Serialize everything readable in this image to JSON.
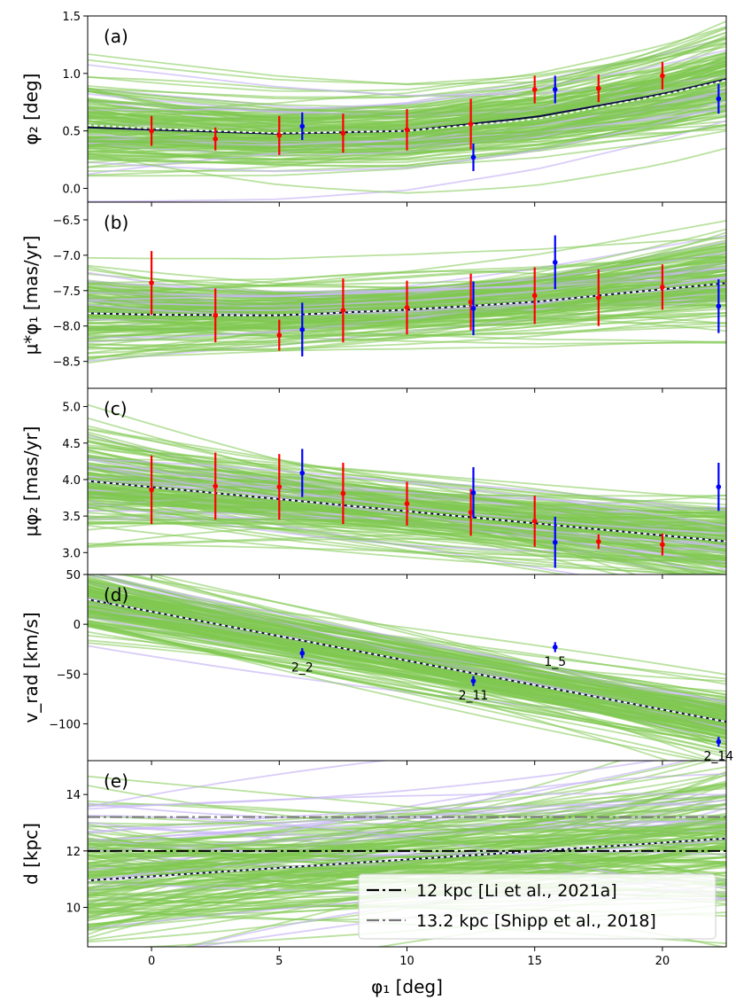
{
  "chart_data": [
    {
      "type": "line",
      "panel_label": "(a)",
      "ylabel": "φ₂ [deg]",
      "ylim": [
        -0.12,
        1.5
      ],
      "yticks": [
        0.0,
        0.5,
        1.0,
        1.5
      ],
      "ytick_labels": [
        "0.0",
        "0.5",
        "1.0",
        "1.5"
      ],
      "fit_line": {
        "x": [
          -2.5,
          0,
          5,
          10,
          15,
          20,
          22.3
        ],
        "y": [
          0.53,
          0.51,
          0.475,
          0.5,
          0.62,
          0.82,
          0.94
        ]
      },
      "alt_line": {
        "x": [
          -2.5,
          0,
          5,
          10,
          15,
          20,
          22.3
        ],
        "y": [
          0.55,
          0.52,
          0.48,
          0.5,
          0.6,
          0.81,
          0.93
        ]
      },
      "spread": {
        "base": 0.35,
        "slope": 0.012
      },
      "series": [
        {
          "name": "red",
          "color": "#ff0000",
          "x": [
            0,
            2.5,
            5,
            7.5,
            10,
            12.5,
            15,
            17.5,
            20
          ],
          "y": [
            0.5,
            0.43,
            0.46,
            0.48,
            0.51,
            0.56,
            0.86,
            0.87,
            0.98
          ],
          "err": [
            0.13,
            0.1,
            0.17,
            0.17,
            0.18,
            0.22,
            0.12,
            0.12,
            0.12
          ]
        },
        {
          "name": "blue",
          "color": "#0000ff",
          "x": [
            5.9,
            12.6,
            15.8,
            22.2
          ],
          "y": [
            0.54,
            0.27,
            0.86,
            0.78
          ],
          "err": [
            0.12,
            0.12,
            0.12,
            0.13
          ]
        }
      ],
      "annotations": []
    },
    {
      "type": "line",
      "panel_label": "(b)",
      "ylabel": "μ*φ₁ [mas/yr]",
      "ylim": [
        -8.88,
        -6.25
      ],
      "yticks": [
        -6.5,
        -7.0,
        -7.5,
        -8.0,
        -8.5
      ],
      "ytick_labels": [
        "−6.5",
        "−7.0",
        "−7.5",
        "−8.0",
        "−8.5"
      ],
      "fit_line": {
        "x": [
          -2.5,
          0,
          5,
          10,
          15,
          20,
          22.3
        ],
        "y": [
          -7.82,
          -7.84,
          -7.85,
          -7.77,
          -7.66,
          -7.48,
          -7.4
        ]
      },
      "alt_line": {
        "x": [
          -2.5,
          0,
          5,
          10,
          15,
          20,
          22.3
        ],
        "y": [
          -7.82,
          -7.84,
          -7.85,
          -7.77,
          -7.66,
          -7.48,
          -7.4
        ]
      },
      "spread": {
        "base": 0.55,
        "slope": 0.012
      },
      "series": [
        {
          "name": "red",
          "color": "#ff0000",
          "x": [
            0,
            2.5,
            5,
            7.5,
            10,
            12.5,
            15,
            17.5,
            20
          ],
          "y": [
            -7.39,
            -7.85,
            -8.13,
            -7.78,
            -7.74,
            -7.66,
            -7.57,
            -7.6,
            -7.45
          ],
          "err": [
            0.45,
            0.38,
            0.22,
            0.45,
            0.38,
            0.4,
            0.4,
            0.4,
            0.32
          ]
        },
        {
          "name": "blue",
          "color": "#0000ff",
          "x": [
            5.9,
            12.6,
            15.8,
            22.2
          ],
          "y": [
            -8.05,
            -7.75,
            -7.1,
            -7.72
          ],
          "err": [
            0.38,
            0.38,
            0.38,
            0.38
          ]
        }
      ],
      "annotations": []
    },
    {
      "type": "line",
      "panel_label": "(c)",
      "ylabel": "μφ₂ [mas/yr]",
      "ylim": [
        2.7,
        5.25
      ],
      "yticks": [
        3.0,
        3.5,
        4.0,
        4.5,
        5.0
      ],
      "ytick_labels": [
        "3.0",
        "3.5",
        "4.0",
        "4.5",
        "5.0"
      ],
      "fit_line": {
        "x": [
          -2.5,
          22.3
        ],
        "y": [
          3.98,
          3.16
        ]
      },
      "alt_line": {
        "x": [
          -2.5,
          22.3
        ],
        "y": [
          3.98,
          3.16
        ]
      },
      "spread": {
        "base": 0.6,
        "slope": 0.0
      },
      "series": [
        {
          "name": "red",
          "color": "#ff0000",
          "x": [
            0,
            2.5,
            5,
            7.5,
            10,
            12.5,
            15,
            17.5,
            20
          ],
          "y": [
            3.86,
            3.91,
            3.9,
            3.81,
            3.67,
            3.55,
            3.43,
            3.15,
            3.11
          ],
          "err": [
            0.47,
            0.46,
            0.45,
            0.42,
            0.3,
            0.32,
            0.35,
            0.1,
            0.15
          ]
        },
        {
          "name": "blue",
          "color": "#0000ff",
          "x": [
            5.9,
            12.6,
            15.8,
            22.2
          ],
          "y": [
            4.09,
            3.82,
            3.14,
            3.9
          ],
          "err": [
            0.33,
            0.35,
            0.35,
            0.33
          ]
        }
      ],
      "annotations": []
    },
    {
      "type": "line",
      "panel_label": "(d)",
      "ylabel": "v_rad [km/s]",
      "ylim": [
        -137,
        50
      ],
      "yticks": [
        50,
        0,
        -50,
        -100
      ],
      "ytick_labels": [
        "50",
        "0",
        "−50",
        "−100"
      ],
      "fit_line": {
        "x": [
          -2.5,
          22.3
        ],
        "y": [
          25,
          -97
        ]
      },
      "alt_line": {
        "x": [
          -2.5,
          22.3
        ],
        "y": [
          25,
          -97
        ]
      },
      "spread": {
        "base": 30,
        "slope": 0.0
      },
      "series": [
        {
          "name": "blue",
          "color": "#0000ff",
          "x": [
            5.9,
            12.6,
            15.8,
            22.2
          ],
          "y": [
            -29,
            -57,
            -23,
            -118
          ],
          "err": [
            5,
            5,
            5,
            5
          ]
        }
      ],
      "annotations": [
        {
          "text": "2_2",
          "x": 5.9,
          "y": -29
        },
        {
          "text": "2_11",
          "x": 12.6,
          "y": -57
        },
        {
          "text": "1_5",
          "x": 15.8,
          "y": -23
        },
        {
          "text": "2_14",
          "x": 22.2,
          "y": -118
        }
      ]
    },
    {
      "type": "line",
      "panel_label": "(e)",
      "ylabel": "d [kpc]",
      "ylim": [
        8.6,
        15.2
      ],
      "yticks": [
        10,
        12,
        14
      ],
      "ytick_labels": [
        "10",
        "12",
        "14"
      ],
      "fit_line": {
        "x": [
          -2.5,
          22.3
        ],
        "y": [
          10.95,
          12.43
        ]
      },
      "alt_line": {
        "x": [
          -2.5,
          22.3
        ],
        "y": [
          10.95,
          12.43
        ]
      },
      "spread": {
        "base": 2.4,
        "slope": 0.0
      },
      "series": [],
      "annotations": [],
      "hlines": [
        {
          "y": 12.0,
          "color": "#000000",
          "label": "12 kpc [Li et al., 2021a]"
        },
        {
          "y": 13.2,
          "color": "#777777",
          "label": "13.2 kpc [Shipp et al., 2018]"
        }
      ]
    }
  ],
  "shared": {
    "xlabel": "φ₁ [deg]",
    "xlim": [
      -2.5,
      22.5
    ],
    "xticks": [
      0,
      5,
      10,
      15,
      20
    ],
    "xtick_labels": [
      "0",
      "5",
      "10",
      "15",
      "20"
    ],
    "colors": {
      "green": "#80c850",
      "lavender": "#c9b8f5",
      "fit": "#0a0a40"
    }
  }
}
